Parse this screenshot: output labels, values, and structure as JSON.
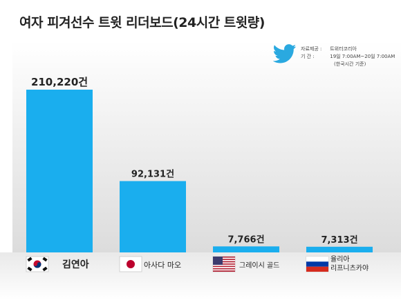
{
  "chart_data": {
    "type": "bar",
    "title": "여자 피겨선수 트윗 리더보드(24시간 트윗량)",
    "categories": [
      "김연아",
      "아사다 마오",
      "그레이시 골드",
      "율리아 리프니츠카야"
    ],
    "category_lines": [
      [
        "김연아"
      ],
      [
        "아사다 마오"
      ],
      [
        "그레이시 골드"
      ],
      [
        "율리아",
        "리프니츠카야"
      ]
    ],
    "values": [
      210220,
      92131,
      7766,
      7313
    ],
    "data_labels": [
      "210,220건",
      "92,131건",
      "7,766건",
      "7,313건"
    ],
    "flags": [
      "korea",
      "japan",
      "usa",
      "russia"
    ],
    "ylim": [
      0,
      210220
    ],
    "grid": false,
    "legend": "none",
    "bar_color": "#1aaeee"
  },
  "source": {
    "line1_label": "자료제공 :",
    "line1_value": "트위터코리아",
    "line2_label": "기      간 :",
    "line2_value": "19일 7:00AM~20일 7:00AM",
    "line3": "(한국시간 기준)"
  }
}
